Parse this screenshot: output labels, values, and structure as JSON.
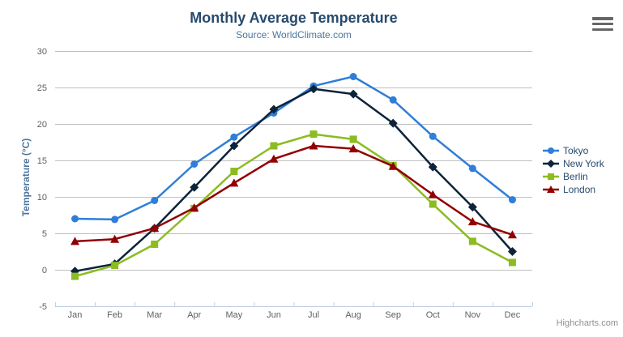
{
  "chart_data": {
    "type": "line",
    "title": "Monthly Average Temperature",
    "subtitle": "Source: WorldClimate.com",
    "categories": [
      "Jan",
      "Feb",
      "Mar",
      "Apr",
      "May",
      "Jun",
      "Jul",
      "Aug",
      "Sep",
      "Oct",
      "Nov",
      "Dec"
    ],
    "series": [
      {
        "name": "Tokyo",
        "color": "#2f7ed8",
        "marker": "circle",
        "values": [
          7.0,
          6.9,
          9.5,
          14.5,
          18.2,
          21.5,
          25.2,
          26.5,
          23.3,
          18.3,
          13.9,
          9.6
        ]
      },
      {
        "name": "New York",
        "color": "#0d233a",
        "marker": "diamond",
        "values": [
          -0.2,
          0.8,
          5.7,
          11.3,
          17.0,
          22.0,
          24.8,
          24.1,
          20.1,
          14.1,
          8.6,
          2.5
        ]
      },
      {
        "name": "Berlin",
        "color": "#8bbc21",
        "marker": "square",
        "values": [
          -0.9,
          0.6,
          3.5,
          8.4,
          13.5,
          17.0,
          18.6,
          17.9,
          14.3,
          9.0,
          3.9,
          1.0
        ]
      },
      {
        "name": "London",
        "color": "#910000",
        "marker": "triangle",
        "values": [
          3.9,
          4.2,
          5.7,
          8.5,
          11.9,
          15.2,
          17.0,
          16.6,
          14.2,
          10.3,
          6.6,
          4.8
        ]
      }
    ],
    "xlabel": "",
    "ylabel": "Temperature (°C)",
    "ylim": [
      -5,
      30
    ],
    "ytick_step": 5,
    "grid": true,
    "legend_position": "right",
    "legend": [
      "Tokyo",
      "New York",
      "Berlin",
      "London"
    ]
  },
  "colors": {
    "title": "#274b6d",
    "subtitle": "#4d759e",
    "ylabel": "#4d759e",
    "axis_label": "#606060",
    "grid": "#c0c0c0",
    "axis_line": "#c0d0e0",
    "legend_text": "#274b6d",
    "credit": "#909090",
    "menu_icon": "#666666"
  },
  "credit": {
    "label": "Highcharts.com"
  },
  "icons": {
    "menu": "hamburger-menu-icon"
  }
}
